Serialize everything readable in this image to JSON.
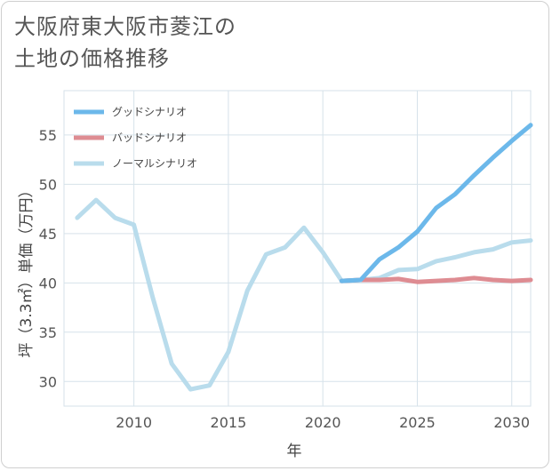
{
  "chart_data": {
    "type": "line",
    "title_lines": [
      "大阪府東大阪市菱江の",
      "土地の価格推移"
    ],
    "xlabel": "年",
    "ylabel": "坪（3.3㎡）単価（万円）",
    "xlim": [
      2006.3,
      2031
    ],
    "ylim": [
      27.5,
      59.5
    ],
    "xticks": [
      2010,
      2015,
      2020,
      2025,
      2030
    ],
    "yticks": [
      30,
      35,
      40,
      45,
      50,
      55
    ],
    "grid": true,
    "legend_position": "top-left",
    "series": [
      {
        "name": "グッドシナリオ",
        "color": "#6cb8ea",
        "x": [
          2021,
          2022,
          2023,
          2024,
          2025,
          2026,
          2027,
          2028,
          2029,
          2030,
          2031
        ],
        "values": [
          40.2,
          40.3,
          42.4,
          43.6,
          45.2,
          47.6,
          49.0,
          50.9,
          52.7,
          54.4,
          56.0
        ]
      },
      {
        "name": "バッドシナリオ",
        "color": "#de8c92",
        "x": [
          2021,
          2022,
          2023,
          2024,
          2025,
          2026,
          2027,
          2028,
          2029,
          2030,
          2031
        ],
        "values": [
          40.2,
          40.3,
          40.3,
          40.4,
          40.1,
          40.2,
          40.3,
          40.5,
          40.3,
          40.2,
          40.3
        ]
      },
      {
        "name": "ノーマルシナリオ",
        "color": "#b9dcec",
        "x": [
          2007,
          2008,
          2009,
          2010,
          2011,
          2012,
          2013,
          2014,
          2015,
          2016,
          2017,
          2018,
          2019,
          2020,
          2021,
          2022,
          2023,
          2024,
          2025,
          2026,
          2027,
          2028,
          2029,
          2030,
          2031
        ],
        "values": [
          46.6,
          48.4,
          46.6,
          45.9,
          38.5,
          31.8,
          29.2,
          29.6,
          33.0,
          39.2,
          42.9,
          43.6,
          45.6,
          43.1,
          40.2,
          40.3,
          40.5,
          41.3,
          41.4,
          42.2,
          42.6,
          43.1,
          43.4,
          44.1,
          44.3
        ]
      }
    ]
  }
}
